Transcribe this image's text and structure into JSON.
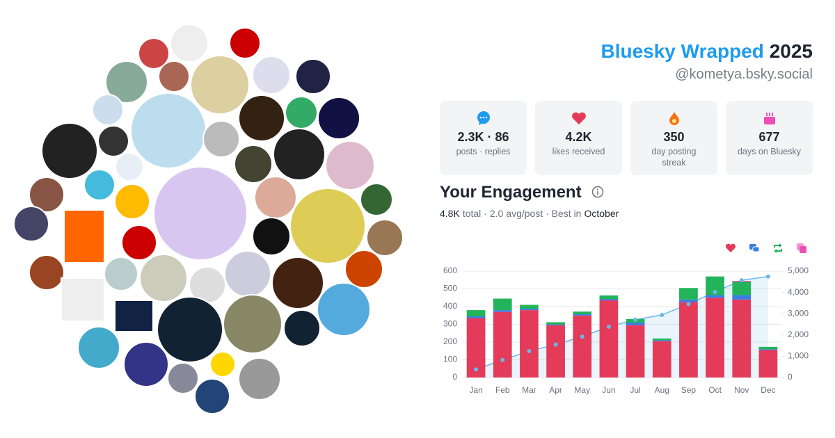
{
  "header": {
    "title": "Bluesky Wrapped",
    "year": "2025",
    "handle": "@kometya.bsky.social"
  },
  "stats": [
    {
      "value": "2.3K · 86",
      "label": "posts · replies"
    },
    {
      "value": "4.2K",
      "label": "likes received"
    },
    {
      "value": "350",
      "label": "day posting streak"
    },
    {
      "value": "677",
      "label": "days on Bluesky"
    }
  ],
  "engagement": {
    "heading": "Your Engagement",
    "summary": [
      "4.8K",
      "total ·",
      "2.0",
      "avg/post · Best in",
      "October"
    ]
  },
  "chart_data": {
    "type": "bar",
    "stacked": true,
    "grid": true,
    "categories": [
      "Jan",
      "Feb",
      "Mar",
      "Apr",
      "May",
      "Jun",
      "Jul",
      "Aug",
      "Sep",
      "Oct",
      "Nov",
      "Dec"
    ],
    "series": [
      {
        "color": "#e33b59",
        "values": [
          335,
          370,
          380,
          295,
          350,
          435,
          295,
          205,
          425,
          450,
          440,
          155
        ]
      },
      {
        "color": "#3b7de3",
        "values": [
          10,
          10,
          8,
          5,
          7,
          8,
          15,
          5,
          15,
          15,
          25,
          5
        ]
      },
      {
        "color": "#22b45a",
        "values": [
          35,
          65,
          22,
          12,
          15,
          20,
          20,
          10,
          65,
          105,
          75,
          13
        ]
      },
      {
        "color": "#ec4fb5",
        "values": [
          0,
          0,
          0,
          0,
          0,
          0,
          0,
          0,
          0,
          0,
          5,
          0
        ]
      },
      {
        "color": "#6bb8e8",
        "axis": "y2",
        "type": "line",
        "values": [
          380,
          825,
          1240,
          1550,
          1920,
          2390,
          2720,
          2940,
          3450,
          4020,
          4570,
          4745
        ]
      }
    ],
    "ylim": [
      0,
      600
    ],
    "yticks": [
      0,
      100,
      200,
      300,
      400,
      500,
      600
    ],
    "y2lim": [
      0,
      5000
    ],
    "y2ticks": [
      0,
      {
        "value": 1000,
        "label": "1,000"
      },
      {
        "value": 2000,
        "label": "2,000"
      },
      {
        "value": 3000,
        "label": "3,000"
      },
      {
        "value": 4000,
        "label": "4,000"
      },
      {
        "value": 5000,
        "label": "5,000"
      }
    ]
  }
}
